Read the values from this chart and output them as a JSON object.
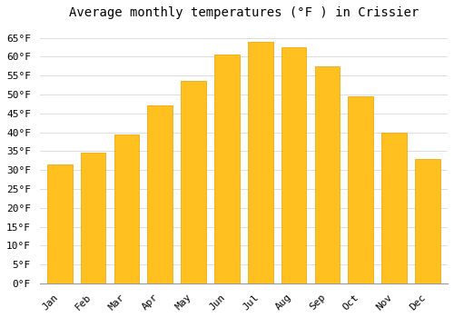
{
  "title": "Average monthly temperatures (°F ) in Crissier",
  "months": [
    "Jan",
    "Feb",
    "Mar",
    "Apr",
    "May",
    "Jun",
    "Jul",
    "Aug",
    "Sep",
    "Oct",
    "Nov",
    "Dec"
  ],
  "values": [
    31.5,
    34.5,
    39.5,
    47.0,
    53.5,
    60.5,
    64.0,
    62.5,
    57.5,
    49.5,
    40.0,
    33.0
  ],
  "bar_color_top": "#FFC020",
  "bar_color_bottom": "#FFB000",
  "bar_edge_color": "#E8A000",
  "background_color": "#FFFFFF",
  "grid_color": "#DDDDDD",
  "ylim": [
    0,
    68
  ],
  "yticks": [
    0,
    5,
    10,
    15,
    20,
    25,
    30,
    35,
    40,
    45,
    50,
    55,
    60,
    65
  ],
  "title_fontsize": 10,
  "tick_fontsize": 8,
  "font_family": "monospace"
}
